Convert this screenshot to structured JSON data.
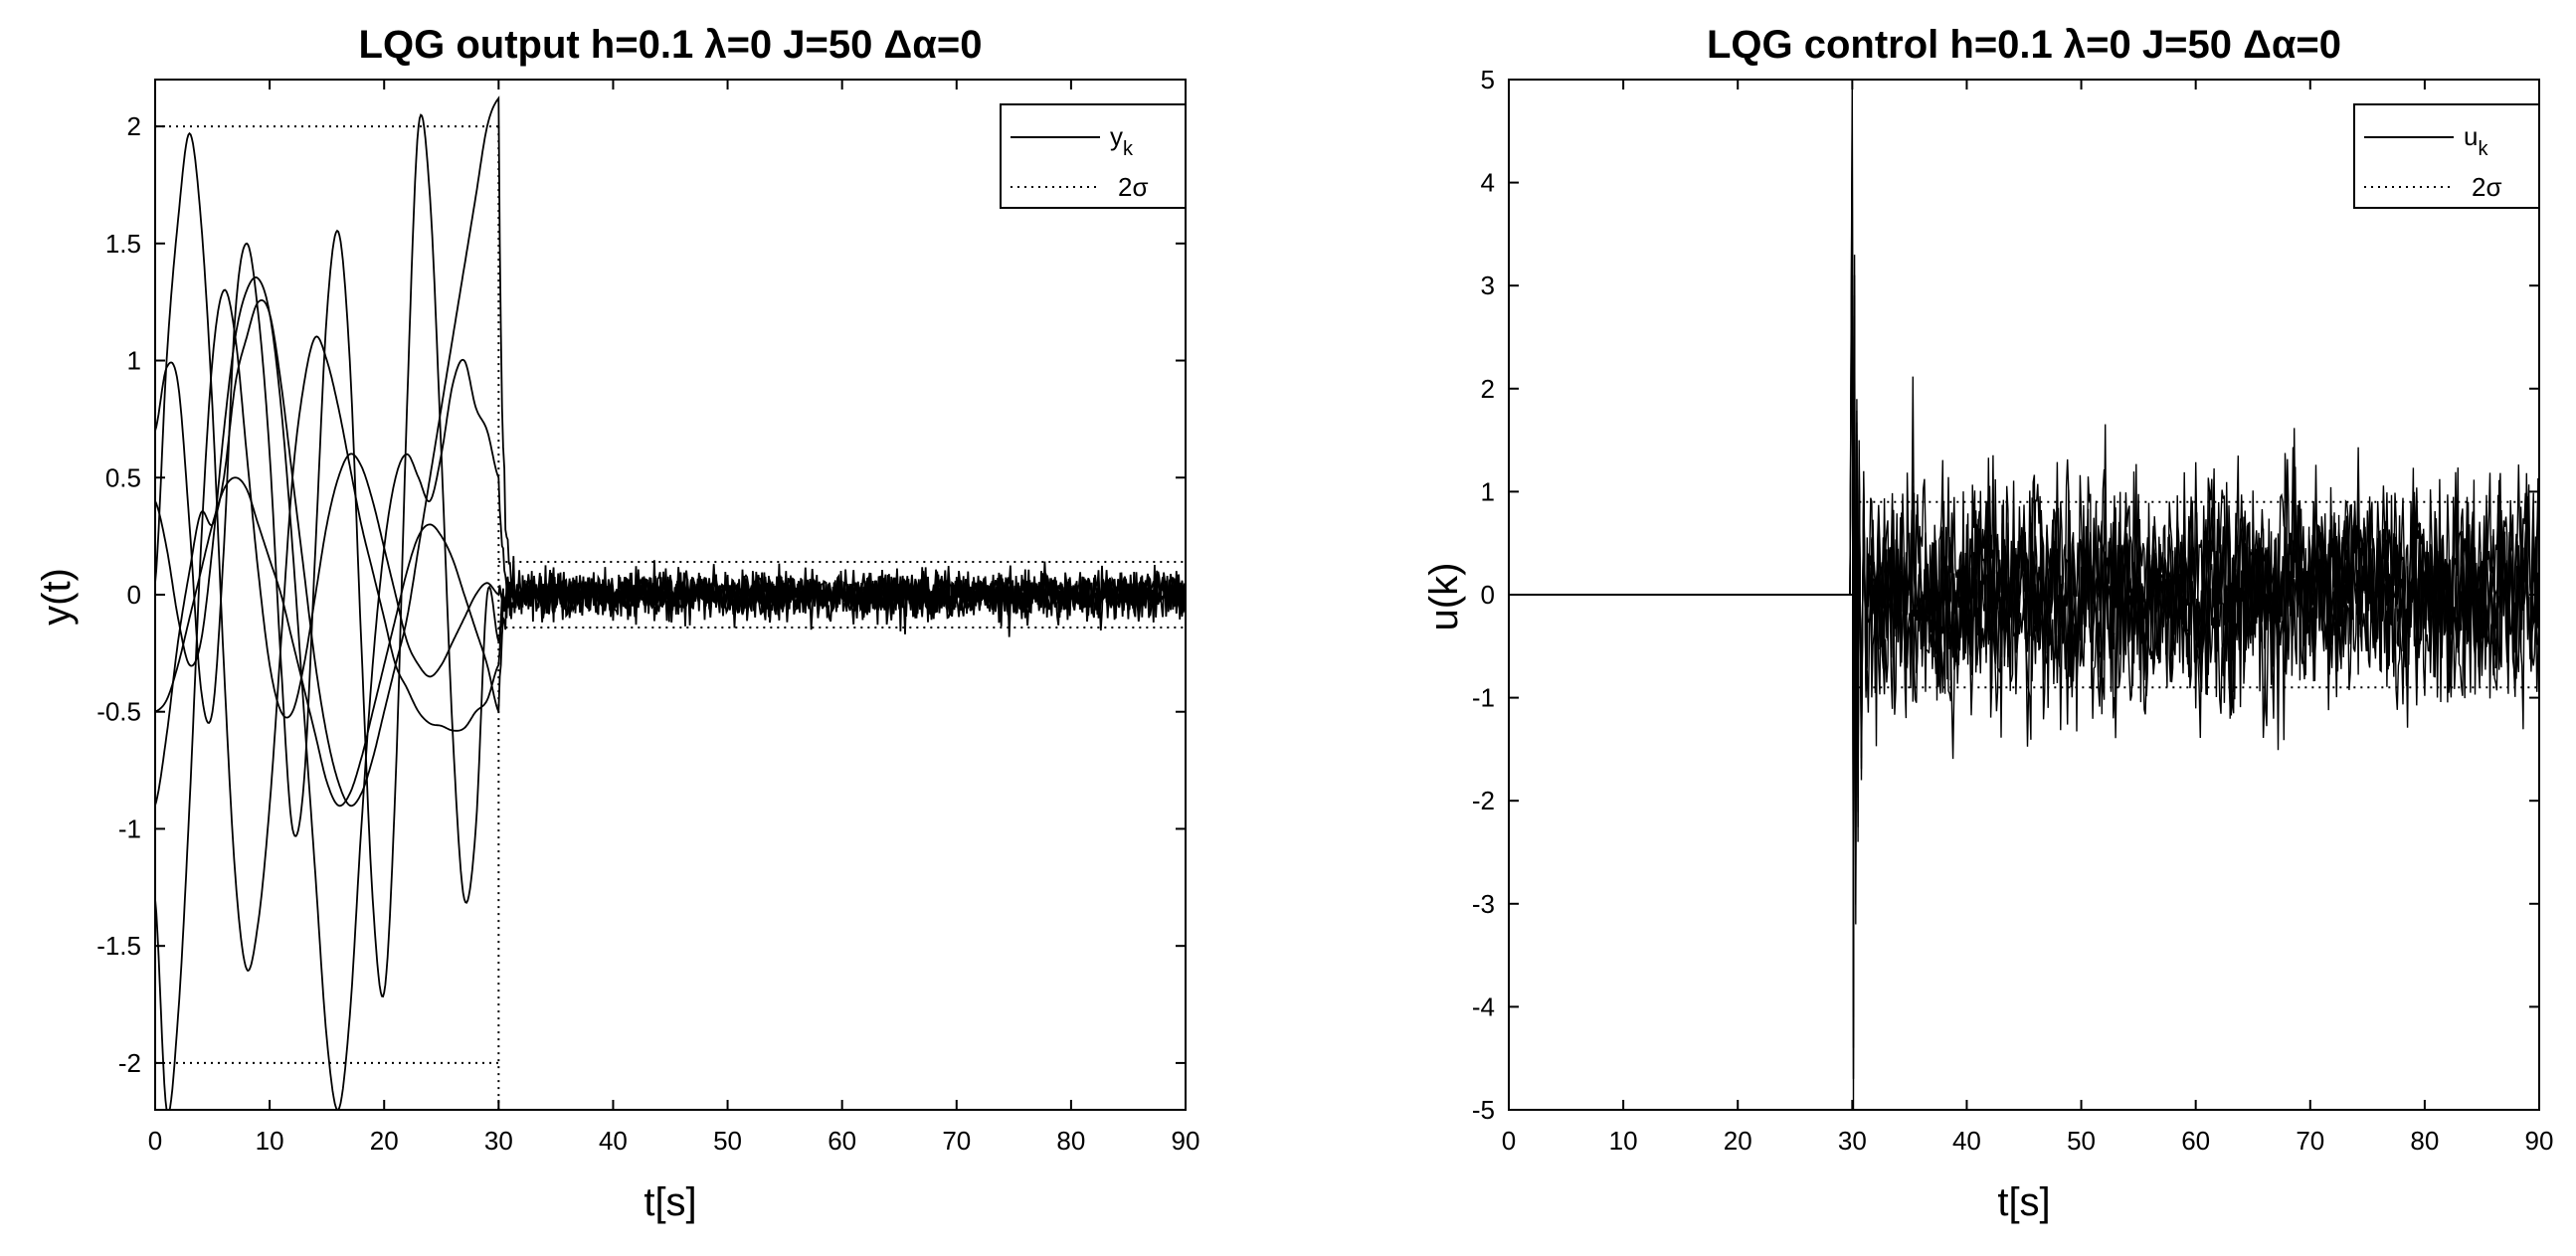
{
  "chart_data": [
    {
      "type": "line",
      "title": "LQG   output h=0.1   λ=0   J=50   Δα=0",
      "xlabel": "t[s]",
      "ylabel": "y(t)",
      "xlim": [
        0,
        90
      ],
      "ylim": [
        -2.2,
        2.2
      ],
      "xticks": [
        "0",
        "10",
        "20",
        "30",
        "40",
        "50",
        "60",
        "70",
        "80",
        "90"
      ],
      "yticks": [
        "2",
        "1.5",
        "1",
        "0.5",
        "0",
        "-0.5",
        "-1",
        "-1.5",
        "-2"
      ],
      "yticks_values": [
        2,
        1.5,
        1,
        0.5,
        0,
        -0.5,
        -1,
        -1.5,
        -2
      ],
      "legend": {
        "position": "top-right",
        "entries": [
          {
            "label": "y",
            "sub": "k",
            "style": "solid"
          },
          {
            "label": "2σ",
            "style": "dotted"
          }
        ]
      },
      "switch_time": 30,
      "bounds_before": 2.0,
      "bounds_after": 0.14,
      "noise_std_after": 0.045,
      "series": [
        {
          "x": [
            0,
            1,
            2,
            3,
            4,
            5,
            6,
            7,
            8,
            9,
            10,
            11,
            12,
            13,
            14,
            15,
            16,
            17,
            18,
            19,
            20,
            21,
            22,
            23,
            24,
            25,
            26,
            27,
            28,
            29,
            30
          ],
          "y": [
            0.05,
            1.0,
            1.6,
            1.97,
            1.6,
            0.8,
            -0.3,
            -1.2,
            -1.6,
            -1.4,
            -0.9,
            -0.2,
            0.5,
            0.9,
            1.1,
            1.0,
            0.8,
            0.55,
            0.3,
            0.1,
            -0.1,
            -0.3,
            -0.4,
            -0.5,
            -0.55,
            -0.56,
            -0.58,
            -0.57,
            -0.5,
            -0.45,
            -0.3
          ]
        },
        {
          "x": [
            0,
            1,
            2,
            3,
            4,
            5,
            6,
            7,
            8,
            9,
            10,
            11,
            12,
            13,
            14,
            15,
            16,
            17,
            18,
            19,
            20,
            21,
            22,
            23,
            24,
            25,
            26,
            27,
            28,
            29,
            30
          ],
          "y": [
            -1.3,
            -2.2,
            -1.8,
            -0.9,
            0.2,
            1.0,
            1.3,
            1.1,
            0.6,
            0.1,
            -0.3,
            -0.5,
            -0.5,
            -0.3,
            0.0,
            0.3,
            0.5,
            0.6,
            0.55,
            0.4,
            0.2,
            0.0,
            -0.2,
            -0.3,
            -0.35,
            -0.3,
            -0.2,
            -0.1,
            0.0,
            0.05,
            0.0
          ]
        },
        {
          "x": [
            0,
            1,
            2,
            3,
            4,
            5,
            6,
            7,
            8,
            9,
            10,
            11,
            12,
            13,
            14,
            15,
            16,
            17,
            18,
            19,
            20,
            21,
            22,
            23,
            24,
            25,
            26,
            27,
            28,
            29,
            30
          ],
          "y": [
            0.7,
            0.97,
            0.9,
            0.3,
            -0.4,
            -0.5,
            0.2,
            1.2,
            1.5,
            1.2,
            0.6,
            -0.3,
            -1.0,
            -0.8,
            0.2,
            1.2,
            1.55,
            1.0,
            -0.2,
            -1.3,
            -1.7,
            -0.8,
            0.8,
            2.0,
            1.7,
            0.6,
            -0.6,
            -1.3,
            -1.0,
            0.0,
            -0.2
          ]
        },
        {
          "x": [
            0,
            1,
            2,
            3,
            4,
            5,
            6,
            7,
            8,
            9,
            10,
            11,
            12,
            13,
            14,
            15,
            16,
            17,
            18,
            19,
            20,
            21,
            22,
            23,
            24,
            25,
            26,
            27,
            28,
            29,
            30
          ],
          "y": [
            0.4,
            0.2,
            -0.1,
            -0.3,
            -0.2,
            0.2,
            0.7,
            1.1,
            1.3,
            1.35,
            1.2,
            0.8,
            0.2,
            -0.5,
            -1.2,
            -1.9,
            -2.2,
            -1.8,
            -1.0,
            -0.3,
            0.2,
            0.5,
            0.6,
            0.5,
            0.4,
            0.6,
            0.9,
            1.0,
            0.8,
            0.7,
            0.5
          ]
        },
        {
          "x": [
            0,
            1,
            2,
            3,
            4,
            5,
            6,
            7,
            8,
            9,
            10,
            11,
            12,
            13,
            14,
            15,
            16,
            17,
            18,
            19,
            20,
            21,
            22,
            23,
            24,
            25,
            26,
            27,
            28,
            29,
            30
          ],
          "y": [
            -0.9,
            -0.6,
            -0.2,
            0.1,
            0.35,
            0.3,
            0.5,
            0.9,
            1.1,
            1.25,
            1.2,
            0.9,
            0.5,
            0.1,
            -0.3,
            -0.6,
            -0.8,
            -0.9,
            -0.85,
            -0.7,
            -0.5,
            -0.3,
            -0.1,
            0.2,
            0.5,
            0.8,
            1.1,
            1.4,
            1.7,
            2.0,
            2.12
          ]
        },
        {
          "x": [
            0,
            1,
            2,
            3,
            4,
            5,
            6,
            7,
            8,
            9,
            10,
            11,
            12,
            13,
            14,
            15,
            16,
            17,
            18,
            19,
            20,
            21,
            22,
            23,
            24,
            25,
            26,
            27,
            28,
            29,
            30
          ],
          "y": [
            -0.5,
            -0.45,
            -0.3,
            -0.1,
            0.1,
            0.3,
            0.45,
            0.5,
            0.45,
            0.3,
            0.15,
            0.0,
            -0.2,
            -0.4,
            -0.6,
            -0.8,
            -0.9,
            -0.85,
            -0.7,
            -0.5,
            -0.3,
            -0.1,
            0.1,
            0.25,
            0.3,
            0.25,
            0.15,
            0.0,
            -0.15,
            -0.3,
            -0.5
          ]
        }
      ]
    },
    {
      "type": "line",
      "title": "LQG   control h=0.1   λ=0   J=50   Δα=0",
      "xlabel": "t[s]",
      "ylabel": "u(k)",
      "xlim": [
        0,
        90
      ],
      "ylim": [
        -5,
        5
      ],
      "xticks": [
        "0",
        "10",
        "20",
        "30",
        "40",
        "50",
        "60",
        "70",
        "80",
        "90"
      ],
      "yticks": [
        "5",
        "4",
        "3",
        "2",
        "1",
        "0",
        "-1",
        "-2",
        "-3",
        "-4",
        "-5"
      ],
      "yticks_values": [
        5,
        4,
        3,
        2,
        1,
        0,
        -1,
        -2,
        -3,
        -4,
        -5
      ],
      "legend": {
        "position": "top-right",
        "entries": [
          {
            "label": "u",
            "sub": "k",
            "style": "solid"
          },
          {
            "label": "2σ",
            "style": "dotted"
          }
        ]
      },
      "switch_time": 30,
      "bounds_after": 0.9,
      "noise_std_after": 0.45,
      "transient": {
        "x": [
          29.8,
          30.0,
          30.1,
          30.2,
          30.3,
          30.4,
          30.5,
          30.6,
          30.8,
          31.0,
          31.2
        ],
        "y": [
          0,
          5,
          -5,
          3.3,
          -3.2,
          1.9,
          -2.4,
          1.5,
          -1.8,
          1.2,
          -1.0
        ]
      },
      "before": {
        "x": [
          0,
          30
        ],
        "y": [
          0,
          0
        ]
      }
    }
  ]
}
